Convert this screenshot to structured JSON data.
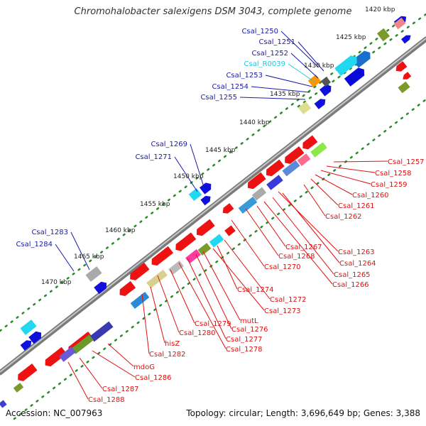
{
  "title": "Chromohalobacter salexigens DSM 3043, complete genome",
  "footer": {
    "accession": "Accession: NC_007963",
    "summary": "Topology: circular; Length: 3,696,649 bp; Genes: 3,388"
  },
  "colors": {
    "backbone": "#888888",
    "forward_label": "#1a1aaa",
    "reverse_label": "#dd1111",
    "rna_label": "#1ec8e0",
    "tick_dots": "#2a8a2a"
  },
  "kbp_ticks": [
    "1420 kbp",
    "1425 kbp",
    "1430 kbp",
    "1435 kbp",
    "1440 kbp",
    "1445 kbp",
    "1450 kbp",
    "1455 kbp",
    "1460 kbp",
    "1465 kbp",
    "1470 kbp"
  ],
  "forward_labels": [
    "Csal_1250",
    "Csal_1251",
    "Csal_1252",
    "Csal_R0039",
    "Csal_1253",
    "Csal_1254",
    "Csal_1255",
    "Csal_1269",
    "Csal_1271",
    "Csal_1283",
    "Csal_1284"
  ],
  "reverse_labels": [
    "Csal_1257",
    "Csal_1258",
    "Csal_1259",
    "Csal_1260",
    "Csal_1261",
    "Csal_1262",
    "Csal_1263",
    "Csal_1264",
    "Csal_1265",
    "Csal_1266",
    "Csal_1267",
    "Csal_1268",
    "Csal_1270",
    "Csal_1274",
    "Csal_1272",
    "Csal_1273",
    "mutL",
    "Csal_1276",
    "Csal_1277",
    "Csal_1278",
    "Csal_1279",
    "Csal_1280",
    "hisZ",
    "Csal_1282",
    "mdoG",
    "Csal_1286",
    "Csal_1287",
    "Csal_1288"
  ]
}
